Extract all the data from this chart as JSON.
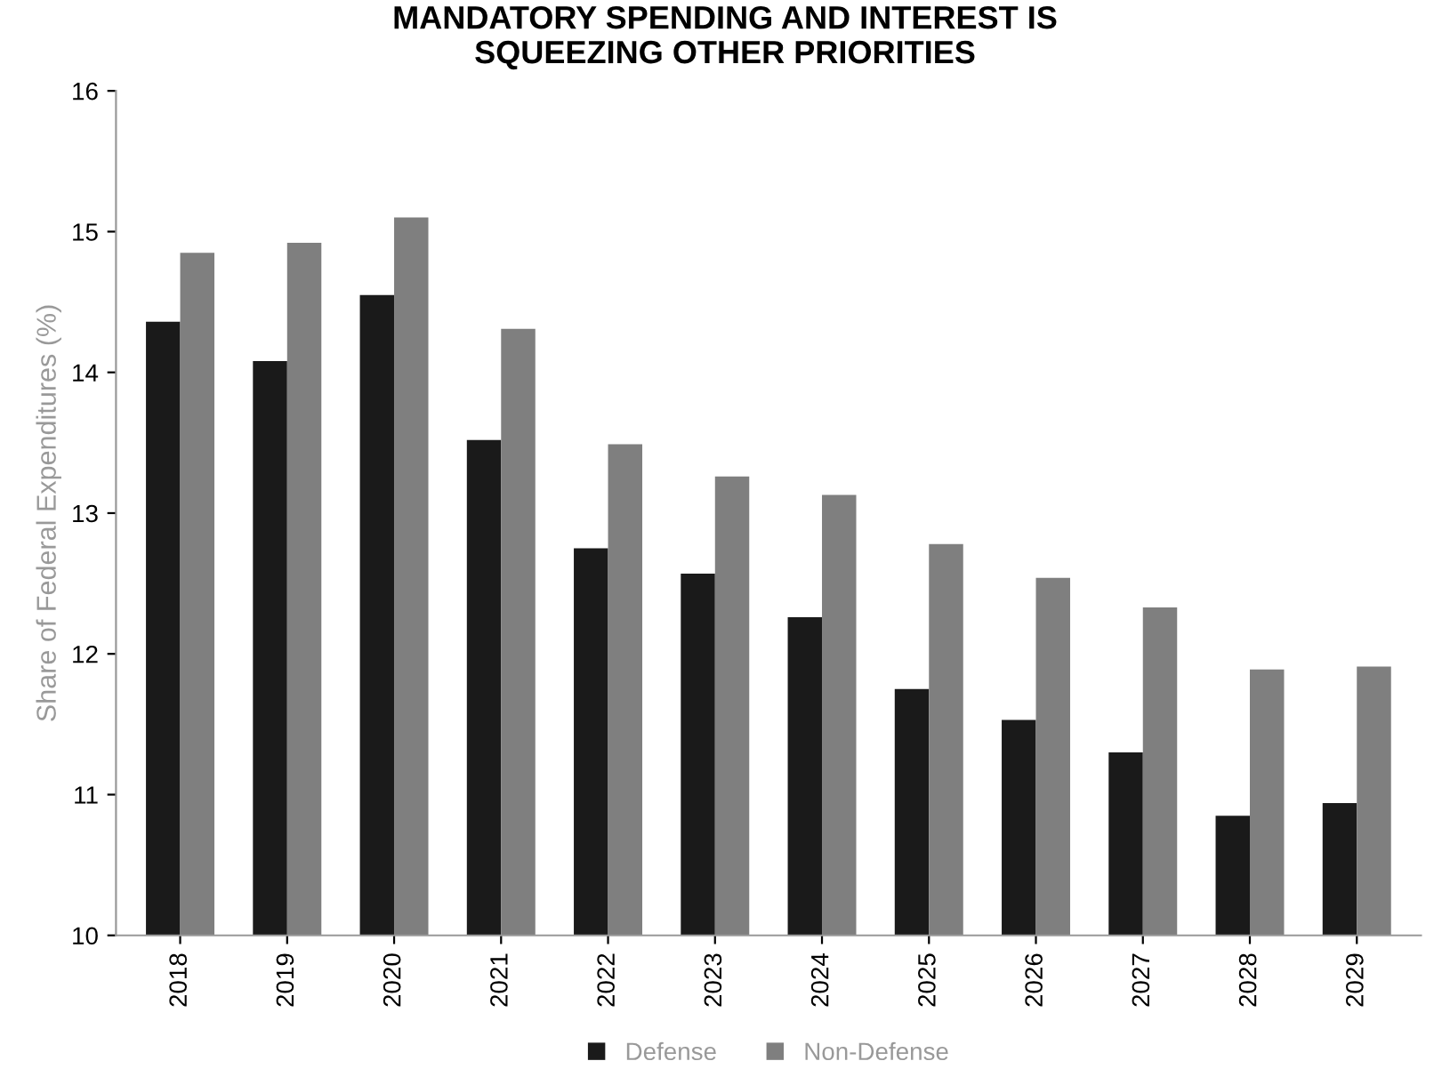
{
  "chart_data": {
    "type": "bar",
    "title": "MANDATORY SPENDING AND INTEREST IS\nSQUEEZING OTHER PRIORITIES",
    "ylabel": "Share of Federal Expenditures (%)",
    "categories": [
      "2018",
      "2019",
      "2020",
      "2021",
      "2022",
      "2023",
      "2024",
      "2025",
      "2026",
      "2027",
      "2028",
      "2029"
    ],
    "series": [
      {
        "name": "Defense",
        "color": "#1a1a1a",
        "values": [
          14.36,
          14.08,
          14.55,
          13.52,
          12.75,
          12.57,
          12.26,
          11.75,
          11.53,
          11.3,
          10.85,
          10.94
        ]
      },
      {
        "name": "Non-Defense",
        "color": "#7f7f7f",
        "values": [
          14.85,
          14.92,
          15.1,
          14.31,
          13.49,
          13.26,
          13.13,
          12.78,
          12.54,
          12.33,
          11.89,
          11.91
        ]
      }
    ],
    "ylim": [
      10,
      16
    ],
    "yticks": [
      10,
      11,
      12,
      13,
      14,
      15,
      16
    ],
    "grid": false,
    "legend": "bottom"
  }
}
